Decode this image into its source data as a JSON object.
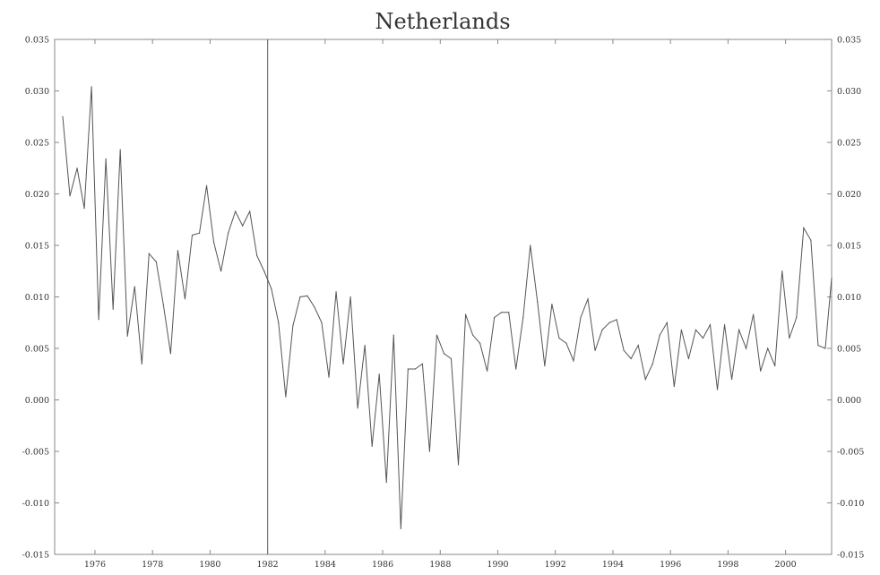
{
  "chart_data": {
    "type": "line",
    "title": "Netherlands",
    "xlabel": "",
    "ylabel": "",
    "xlim": [
      1974.6,
      2001.6
    ],
    "ylim": [
      -0.015,
      0.035
    ],
    "yticks": [
      -0.015,
      -0.01,
      -0.005,
      0.0,
      0.005,
      0.01,
      0.015,
      0.02,
      0.025,
      0.03,
      0.035
    ],
    "ytick_labels": [
      "-0.015",
      "-0.010",
      "-0.005",
      "0.000",
      "0.005",
      "0.010",
      "0.015",
      "0.020",
      "0.025",
      "0.030",
      "0.035"
    ],
    "xticks": [
      1976,
      1978,
      1980,
      1982,
      1984,
      1986,
      1988,
      1990,
      1992,
      1994,
      1996,
      1998,
      2000
    ],
    "xtick_labels": [
      "1976",
      "1978",
      "1980",
      "1982",
      "1984",
      "1986",
      "1988",
      "1990",
      "1992",
      "1994",
      "1996",
      "1998",
      "2000"
    ],
    "vertical_line_x": 1982.0,
    "grid": false,
    "colors": {
      "line": "#555555",
      "axes": "#888888",
      "text": "#333333"
    },
    "series": [
      {
        "x": [
          1974.88,
          1975.13,
          1975.38,
          1975.63,
          1975.88,
          1976.13,
          1976.38,
          1976.63,
          1976.88,
          1977.13,
          1977.38,
          1977.63,
          1977.88,
          1978.13,
          1978.38,
          1978.63,
          1978.88,
          1979.13,
          1979.38,
          1979.63,
          1979.88,
          1980.13,
          1980.38,
          1980.63,
          1980.88,
          1981.13,
          1981.38,
          1981.63,
          1981.88,
          1982.13,
          1982.38,
          1982.63,
          1982.88,
          1983.13,
          1983.38,
          1983.63,
          1983.88,
          1984.13,
          1984.38,
          1984.63,
          1984.88,
          1985.13,
          1985.38,
          1985.63,
          1985.88,
          1986.13,
          1986.38,
          1986.63,
          1986.88,
          1987.13,
          1987.38,
          1987.63,
          1987.88,
          1988.13,
          1988.38,
          1988.63,
          1988.88,
          1989.13,
          1989.38,
          1989.63,
          1989.88,
          1990.13,
          1990.38,
          1990.63,
          1990.88,
          1991.13,
          1991.38,
          1991.63,
          1991.88,
          1992.13,
          1992.38,
          1992.63,
          1992.88,
          1993.13,
          1993.38,
          1993.63,
          1993.88,
          1994.13,
          1994.38,
          1994.63,
          1994.88,
          1995.13,
          1995.38,
          1995.63,
          1995.88,
          1996.13,
          1996.38,
          1996.63,
          1996.88,
          1997.13,
          1997.38,
          1997.63,
          1997.88,
          1998.13,
          1998.38,
          1998.63,
          1998.88,
          1999.13,
          1999.38,
          1999.63,
          1999.88,
          2000.13,
          2000.38,
          2000.63,
          2000.88,
          2001.13,
          2001.38,
          2001.6
        ],
        "y": [
          0.0275,
          0.0198,
          0.0225,
          0.0186,
          0.0304,
          0.0078,
          0.0234,
          0.0088,
          0.0243,
          0.0062,
          0.011,
          0.0035,
          0.0142,
          0.0134,
          0.0092,
          0.0045,
          0.0145,
          0.0098,
          0.016,
          0.0162,
          0.0208,
          0.0153,
          0.0125,
          0.0162,
          0.0183,
          0.0169,
          0.0183,
          0.014,
          0.0125,
          0.0108,
          0.0075,
          0.0003,
          0.0072,
          0.01,
          0.0101,
          0.009,
          0.0075,
          0.0022,
          0.0105,
          0.0035,
          0.01,
          -0.0008,
          0.0053,
          -0.0045,
          0.0025,
          -0.008,
          0.0063,
          -0.0125,
          0.003,
          0.003,
          0.0035,
          -0.005,
          0.0063,
          0.0045,
          0.004,
          -0.0063,
          0.0083,
          0.0063,
          0.0055,
          0.0028,
          0.008,
          0.0085,
          0.0085,
          0.003,
          0.008,
          0.015,
          0.0095,
          0.0033,
          0.0093,
          0.006,
          0.0055,
          0.0038,
          0.008,
          0.0098,
          0.0048,
          0.0068,
          0.0075,
          0.0078,
          0.0048,
          0.004,
          0.0053,
          0.002,
          0.0035,
          0.0063,
          0.0075,
          0.0013,
          0.0068,
          0.004,
          0.0068,
          0.006,
          0.0073,
          0.001,
          0.0073,
          0.002,
          0.0068,
          0.005,
          0.0083,
          0.0028,
          0.005,
          0.0033,
          0.0125,
          0.006,
          0.008,
          0.0167,
          0.0155,
          0.0053,
          0.005,
          0.0118
        ]
      }
    ]
  }
}
